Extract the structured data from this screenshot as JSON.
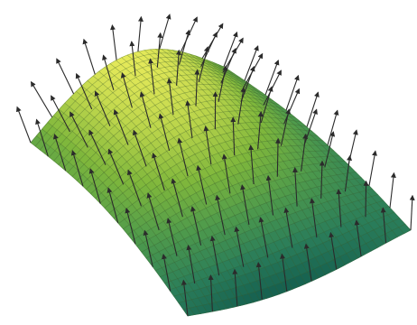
{
  "figure": {
    "kind": "3d-surface-with-normal-vectors",
    "colormap": [
      "#145e4f",
      "#2a7d5a",
      "#4e9a4c",
      "#7fb73c",
      "#b8d34a",
      "#e6ea5a"
    ],
    "mesh_line_color": "#3f5f2f",
    "arrow_color": "#2b2b2b",
    "background": "#ffffff"
  }
}
